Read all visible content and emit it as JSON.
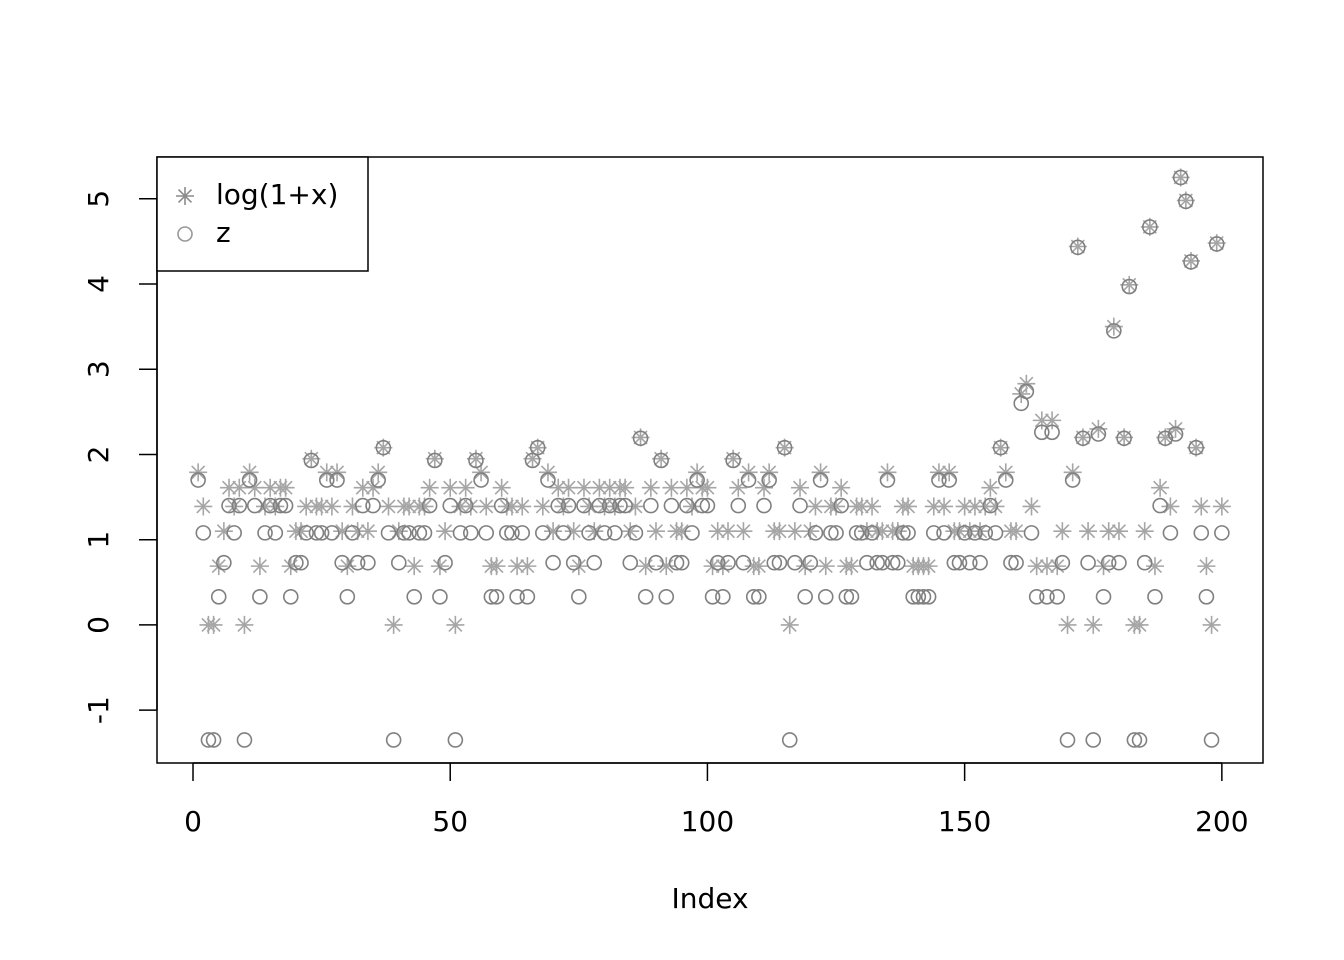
{
  "chart_data": {
    "type": "scatter",
    "x_label": "Index",
    "x": [
      1,
      2,
      3,
      4,
      5,
      6,
      7,
      8,
      9,
      10,
      11,
      12,
      13,
      14,
      15,
      16,
      17,
      18,
      19,
      20,
      21,
      22,
      23,
      24,
      25,
      26,
      27,
      28,
      29,
      30,
      31,
      32,
      33,
      34,
      35,
      36,
      37,
      38,
      39,
      40,
      41,
      42,
      43,
      44,
      45,
      46,
      47,
      48,
      49,
      50,
      51,
      52,
      53,
      54,
      55,
      56,
      57,
      58,
      59,
      60,
      61,
      62,
      63,
      64,
      65,
      66,
      67,
      68,
      69,
      70,
      71,
      72,
      73,
      74,
      75,
      76,
      77,
      78,
      79,
      80,
      81,
      82,
      83,
      84,
      85,
      86,
      87,
      88,
      89,
      90,
      91,
      92,
      93,
      94,
      95,
      96,
      97,
      98,
      99,
      100,
      101,
      102,
      103,
      104,
      105,
      106,
      107,
      108,
      109,
      110,
      111,
      112,
      113,
      114,
      115,
      116,
      117,
      118,
      119,
      120,
      121,
      122,
      123,
      124,
      125,
      126,
      127,
      128,
      129,
      130,
      131,
      132,
      133,
      134,
      135,
      136,
      137,
      138,
      139,
      140,
      141,
      142,
      143,
      144,
      145,
      146,
      147,
      148,
      149,
      150,
      151,
      152,
      153,
      154,
      155,
      156,
      157,
      158,
      159,
      160,
      161,
      162,
      163,
      164,
      165,
      166,
      167,
      168,
      169,
      170,
      171,
      172,
      173,
      174,
      175,
      176,
      177,
      178,
      179,
      180,
      181,
      182,
      183,
      184,
      185,
      186,
      187,
      188,
      189,
      190,
      191,
      192,
      193,
      194,
      195,
      196,
      197,
      198,
      199,
      200
    ],
    "series": [
      {
        "name": "log(1+x)",
        "color": "#a6a6a6",
        "legend_color": "#8c8c8c",
        "marker": "asterisk",
        "values": [
          1.79,
          1.39,
          0,
          0,
          0.69,
          1.1,
          1.61,
          1.39,
          1.61,
          0,
          1.79,
          1.61,
          0.69,
          1.39,
          1.61,
          1.39,
          1.61,
          1.61,
          0.69,
          1.1,
          1.1,
          1.39,
          1.95,
          1.39,
          1.39,
          1.79,
          1.39,
          1.79,
          1.1,
          0.69,
          1.39,
          1.1,
          1.61,
          1.1,
          1.61,
          1.79,
          2.08,
          1.39,
          0,
          1.1,
          1.39,
          1.39,
          0.69,
          1.39,
          1.39,
          1.61,
          1.95,
          0.69,
          1.1,
          1.61,
          0,
          1.39,
          1.61,
          1.39,
          1.95,
          1.79,
          1.39,
          0.69,
          0.69,
          1.61,
          1.39,
          1.39,
          0.69,
          1.39,
          0.69,
          1.95,
          2.08,
          1.39,
          1.79,
          1.1,
          1.61,
          1.39,
          1.61,
          1.1,
          0.69,
          1.61,
          1.39,
          1.1,
          1.61,
          1.39,
          1.61,
          1.39,
          1.61,
          1.61,
          1.1,
          1.39,
          2.2,
          0.69,
          1.61,
          1.1,
          1.95,
          0.69,
          1.61,
          1.1,
          1.1,
          1.61,
          1.39,
          1.79,
          1.61,
          1.61,
          0.69,
          1.1,
          0.69,
          1.1,
          1.95,
          1.61,
          1.1,
          1.79,
          0.69,
          0.69,
          1.61,
          1.79,
          1.1,
          1.1,
          2.08,
          0,
          1.1,
          1.61,
          0.69,
          1.1,
          1.39,
          1.79,
          0.69,
          1.39,
          1.39,
          1.61,
          0.69,
          0.69,
          1.39,
          1.39,
          1.1,
          1.39,
          1.1,
          1.1,
          1.79,
          1.1,
          1.1,
          1.39,
          1.39,
          0.69,
          0.69,
          0.69,
          0.69,
          1.39,
          1.79,
          1.39,
          1.79,
          1.1,
          1.1,
          1.39,
          1.1,
          1.39,
          1.1,
          1.39,
          1.61,
          1.39,
          2.08,
          1.79,
          1.1,
          1.1,
          2.71,
          2.83,
          1.39,
          0.69,
          2.4,
          0.69,
          2.4,
          0.69,
          1.1,
          0,
          1.79,
          4.44,
          2.2,
          1.1,
          0,
          2.3,
          0.69,
          1.1,
          3.5,
          1.1,
          2.2,
          3.99,
          0,
          0,
          1.1,
          4.67,
          0.69,
          1.61,
          2.2,
          1.39,
          2.3,
          5.25,
          4.98,
          4.27,
          2.08,
          1.39,
          0.69,
          0,
          4.48,
          1.39
        ]
      },
      {
        "name": "z",
        "color": "#808080",
        "legend_color": "#999999",
        "marker": "circle",
        "values": [
          1.7,
          1.08,
          -1.35,
          -1.35,
          0.33,
          0.73,
          1.4,
          1.08,
          1.4,
          -1.35,
          1.7,
          1.4,
          0.33,
          1.08,
          1.4,
          1.08,
          1.4,
          1.4,
          0.33,
          0.73,
          0.73,
          1.08,
          1.93,
          1.08,
          1.08,
          1.7,
          1.08,
          1.7,
          0.73,
          0.33,
          1.08,
          0.73,
          1.4,
          0.73,
          1.4,
          1.7,
          2.08,
          1.08,
          -1.35,
          0.73,
          1.08,
          1.08,
          0.33,
          1.08,
          1.08,
          1.4,
          1.93,
          0.33,
          0.73,
          1.4,
          -1.35,
          1.08,
          1.4,
          1.08,
          1.93,
          1.7,
          1.08,
          0.33,
          0.33,
          1.4,
          1.08,
          1.08,
          0.33,
          1.08,
          0.33,
          1.93,
          2.08,
          1.08,
          1.7,
          0.73,
          1.4,
          1.08,
          1.4,
          0.73,
          0.33,
          1.4,
          1.08,
          0.73,
          1.4,
          1.08,
          1.4,
          1.08,
          1.4,
          1.4,
          0.73,
          1.08,
          2.19,
          0.33,
          1.4,
          0.73,
          1.93,
          0.33,
          1.4,
          0.73,
          0.73,
          1.4,
          1.08,
          1.7,
          1.4,
          1.4,
          0.33,
          0.73,
          0.33,
          0.73,
          1.93,
          1.4,
          0.73,
          1.7,
          0.33,
          0.33,
          1.4,
          1.7,
          0.73,
          0.73,
          2.08,
          -1.35,
          0.73,
          1.4,
          0.33,
          0.73,
          1.08,
          1.7,
          0.33,
          1.08,
          1.08,
          1.4,
          0.33,
          0.33,
          1.08,
          1.08,
          0.73,
          1.08,
          0.73,
          0.73,
          1.7,
          0.73,
          0.73,
          1.08,
          1.08,
          0.33,
          0.33,
          0.33,
          0.33,
          1.08,
          1.7,
          1.08,
          1.7,
          0.73,
          0.73,
          1.08,
          0.73,
          1.08,
          0.73,
          1.08,
          1.4,
          1.08,
          2.08,
          1.7,
          0.73,
          0.73,
          2.6,
          2.74,
          1.08,
          0.33,
          2.26,
          0.33,
          2.26,
          0.33,
          0.73,
          -1.35,
          1.7,
          4.43,
          2.19,
          0.73,
          -1.35,
          2.24,
          0.33,
          0.73,
          3.45,
          0.73,
          2.19,
          3.97,
          -1.35,
          -1.35,
          0.73,
          4.67,
          0.33,
          1.4,
          2.19,
          1.08,
          2.24,
          5.25,
          4.97,
          4.26,
          2.08,
          1.08,
          0.33,
          -1.35,
          4.47,
          1.08
        ]
      }
    ],
    "xlim": [
      -7,
      208
    ],
    "ylim": [
      -1.62,
      5.49
    ],
    "xticks": [
      0,
      50,
      100,
      150,
      200
    ],
    "yticks": [
      -1,
      0,
      1,
      2,
      3,
      4,
      5
    ],
    "legend": "top-left",
    "grid": false
  }
}
